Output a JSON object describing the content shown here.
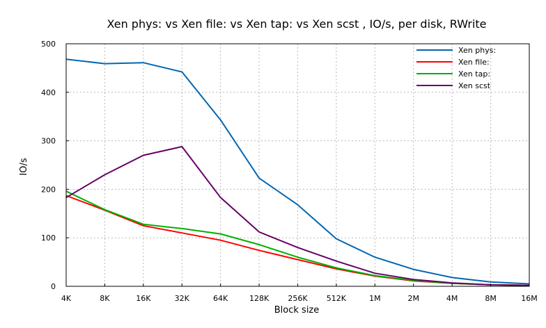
{
  "chart_data": {
    "type": "line",
    "title": "Xen phys: vs Xen file: vs Xen tap: vs Xen scst , IO/s, per disk, RWrite",
    "xlabel": "Block size",
    "ylabel": "IO/s",
    "categories": [
      "4K",
      "8K",
      "16K",
      "32K",
      "64K",
      "128K",
      "256K",
      "512K",
      "1M",
      "2M",
      "4M",
      "8M",
      "16M"
    ],
    "ylim": [
      0,
      500
    ],
    "yticks": [
      "0",
      "100",
      "200",
      "300",
      "400",
      "500"
    ],
    "grid": true,
    "legend_position": "top-right",
    "series": [
      {
        "name": "Xen phys:",
        "color": "#0066b3",
        "values": [
          468,
          459,
          461,
          442,
          343,
          223,
          168,
          98,
          60,
          35,
          18,
          9,
          5
        ]
      },
      {
        "name": "Xen file:",
        "color": "#ff0000",
        "values": [
          187,
          157,
          125,
          110,
          95,
          74,
          55,
          36,
          21,
          11,
          6,
          3,
          2
        ]
      },
      {
        "name": "Xen tap:",
        "color": "#00b000",
        "values": [
          196,
          158,
          128,
          119,
          108,
          86,
          60,
          38,
          22,
          12,
          6,
          3,
          2
        ]
      },
      {
        "name": "Xen scst",
        "color": "#660066",
        "values": [
          183,
          230,
          270,
          288,
          183,
          112,
          80,
          52,
          27,
          14,
          7,
          3,
          2
        ]
      }
    ]
  }
}
